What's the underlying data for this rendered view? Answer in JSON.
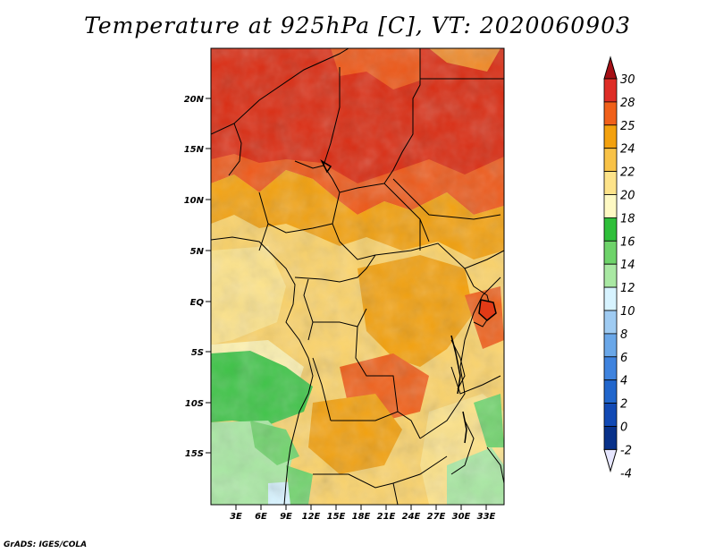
{
  "title": "Temperature at 925hPa [C], VT: 2020060903",
  "credit": "GrADS: IGES/COLA",
  "map": {
    "lat_ticks": [
      "20N",
      "15N",
      "10N",
      "5N",
      "EQ",
      "5S",
      "10S",
      "15S"
    ],
    "lon_ticks": [
      "3E",
      "6E",
      "9E",
      "12E",
      "15E",
      "18E",
      "21E",
      "24E",
      "27E",
      "30E",
      "33E"
    ]
  },
  "colorbar": {
    "labels": [
      "30",
      "28",
      "25",
      "24",
      "22",
      "20",
      "18",
      "16",
      "14",
      "12",
      "10",
      "8",
      "6",
      "4",
      "2",
      "0",
      "-2",
      "-4"
    ],
    "colors": [
      "#a50f15",
      "#de2d26",
      "#f0601a",
      "#f3a10e",
      "#f8c247",
      "#fde38a",
      "#fef9c3",
      "#2fbf3a",
      "#6ed36a",
      "#a9e8a3",
      "#d7f3ff",
      "#9fcbf2",
      "#6aa7e8",
      "#3f83de",
      "#2166cc",
      "#1149b4",
      "#08318a",
      "#041a52"
    ]
  }
}
